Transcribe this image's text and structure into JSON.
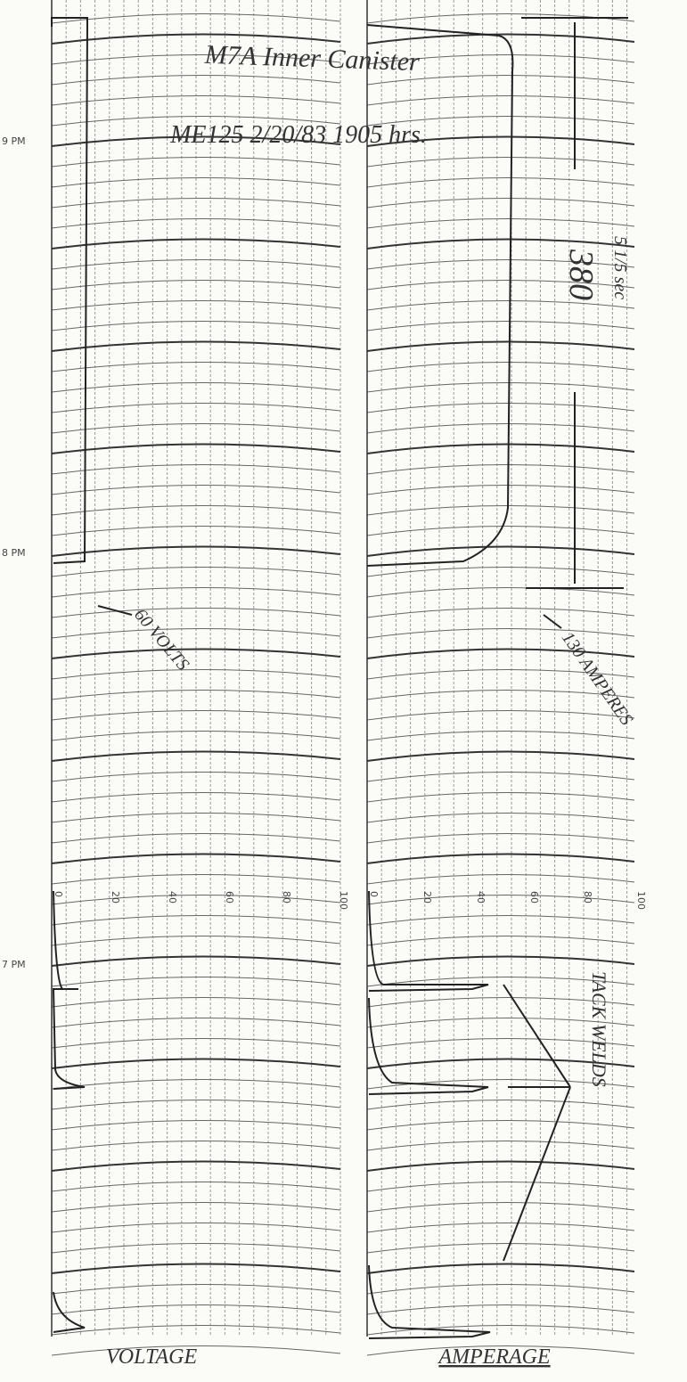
{
  "header": {
    "line1": "M7A Inner Canister",
    "line2": "ME125 2/20/83 1905 hrs."
  },
  "time_labels": [
    "9 PM",
    "8 PM",
    "7 PM"
  ],
  "voltage_scale": [
    0,
    20,
    40,
    60,
    80,
    100
  ],
  "amperage_scale": [
    0,
    20,
    40,
    60,
    80,
    100
  ],
  "annotations": {
    "volts": "60 VOLTS",
    "amperes": "130 AMPERES",
    "duration": "380",
    "duration_unit": "5 1/5 sec",
    "tack_welds": "TACK WELDS"
  },
  "footer": {
    "left": "VOLTAGE",
    "right": "AMPERAGE"
  }
}
